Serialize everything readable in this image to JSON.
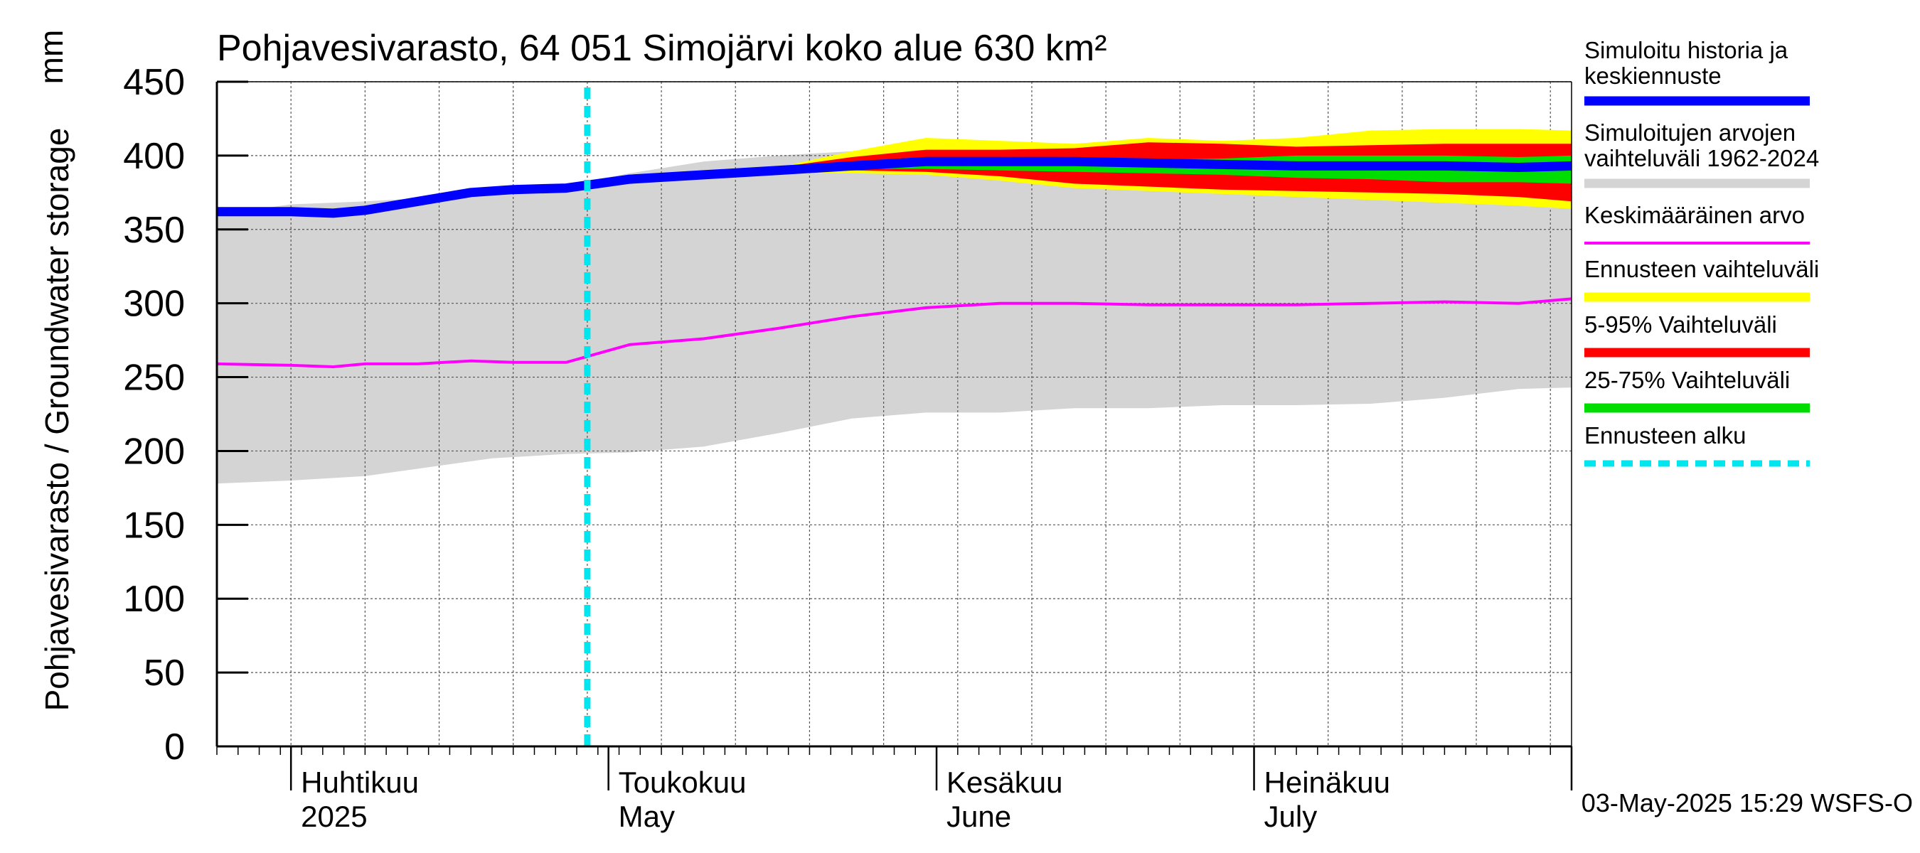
{
  "chart_data": {
    "type": "area",
    "title": "Pohjavesivarasto, 64 051 Simojärvi koko alue 630 km²",
    "ylabel": "Pohjavesivarasto / Groundwater storage",
    "yunit": "mm",
    "ylim": [
      0,
      450
    ],
    "yticks": [
      0,
      50,
      100,
      150,
      200,
      250,
      300,
      350,
      400,
      450
    ],
    "xlim": [
      "2025-03-25",
      "2025-07-31"
    ],
    "grid": true,
    "legend_position": "right",
    "month_labels": [
      {
        "fi": "Huhtikuu",
        "en": "2025",
        "date": "2025-04-01"
      },
      {
        "fi": "Toukokuu",
        "en": "May",
        "date": "2025-05-01"
      },
      {
        "fi": "Kesäkuu",
        "en": "June",
        "date": "2025-06-01"
      },
      {
        "fi": "Heinäkuu",
        "en": "July",
        "date": "2025-07-01"
      }
    ],
    "forecast_start": "2025-04-29",
    "range_1962_2024": {
      "x": [
        "2025-03-25",
        "2025-04-01",
        "2025-04-08",
        "2025-04-13",
        "2025-04-20",
        "2025-04-27",
        "2025-05-03",
        "2025-05-10",
        "2025-05-17",
        "2025-05-24",
        "2025-05-31",
        "2025-06-07",
        "2025-06-14",
        "2025-06-21",
        "2025-06-28",
        "2025-07-05",
        "2025-07-12",
        "2025-07-19",
        "2025-07-26",
        "2025-07-31"
      ],
      "upper": [
        360,
        367,
        369,
        371,
        376,
        380,
        388,
        396,
        400,
        403,
        405,
        407,
        405,
        404,
        403,
        402,
        403,
        405,
        406,
        407
      ],
      "lower": [
        178,
        180,
        183,
        188,
        195,
        198,
        199,
        203,
        212,
        222,
        226,
        226,
        229,
        229,
        231,
        231,
        232,
        236,
        242,
        243
      ]
    },
    "series": [
      {
        "name": "Simuloitu historia ja keskiennuste",
        "color": "#0000ff",
        "x": [
          "2025-03-25",
          "2025-04-01",
          "2025-04-05",
          "2025-04-08",
          "2025-04-13",
          "2025-04-18",
          "2025-04-22",
          "2025-04-27",
          "2025-05-03",
          "2025-05-10",
          "2025-05-17",
          "2025-05-24",
          "2025-05-31",
          "2025-06-07",
          "2025-06-14",
          "2025-06-21",
          "2025-06-28",
          "2025-07-05",
          "2025-07-12",
          "2025-07-19",
          "2025-07-26",
          "2025-07-31"
        ],
        "values": [
          362,
          362,
          361,
          363,
          369,
          375,
          377,
          378,
          384,
          387,
          390,
          393,
          396,
          396,
          396,
          395,
          394,
          393,
          393,
          393,
          392,
          393
        ]
      },
      {
        "name": "Keskimääräinen arvo",
        "color": "#ff00ff",
        "x": [
          "2025-03-25",
          "2025-04-01",
          "2025-04-05",
          "2025-04-08",
          "2025-04-13",
          "2025-04-18",
          "2025-04-22",
          "2025-04-27",
          "2025-05-03",
          "2025-05-10",
          "2025-05-17",
          "2025-05-24",
          "2025-05-31",
          "2025-06-07",
          "2025-06-14",
          "2025-06-21",
          "2025-06-28",
          "2025-07-05",
          "2025-07-12",
          "2025-07-19",
          "2025-07-26",
          "2025-07-31"
        ],
        "values": [
          259,
          258,
          257,
          259,
          259,
          261,
          260,
          260,
          272,
          276,
          283,
          291,
          297,
          300,
          300,
          299,
          299,
          299,
          300,
          301,
          300,
          303
        ]
      }
    ],
    "bands": [
      {
        "name": "Ennusteen vaihteluväli",
        "color": "#ffff00",
        "x": [
          "2025-05-17",
          "2025-05-24",
          "2025-05-31",
          "2025-06-07",
          "2025-06-14",
          "2025-06-21",
          "2025-06-28",
          "2025-07-05",
          "2025-07-12",
          "2025-07-19",
          "2025-07-26",
          "2025-07-31"
        ],
        "upper": [
          392,
          403,
          412,
          410,
          408,
          412,
          410,
          412,
          417,
          418,
          418,
          417
        ],
        "lower": [
          388,
          388,
          387,
          383,
          378,
          376,
          374,
          372,
          370,
          368,
          366,
          364
        ]
      },
      {
        "name": "5-95% Vaihteluväli",
        "color": "#ff0000",
        "x": [
          "2025-05-17",
          "2025-05-24",
          "2025-05-31",
          "2025-06-07",
          "2025-06-14",
          "2025-06-21",
          "2025-06-28",
          "2025-07-05",
          "2025-07-12",
          "2025-07-19",
          "2025-07-26",
          "2025-07-31"
        ],
        "upper": [
          392,
          399,
          404,
          404,
          405,
          409,
          408,
          406,
          407,
          408,
          408,
          408
        ],
        "lower": [
          389,
          390,
          389,
          386,
          381,
          379,
          377,
          376,
          375,
          374,
          372,
          369
        ]
      },
      {
        "name": "25-75% Vaihteluväli",
        "color": "#00dd00",
        "x": [
          "2025-05-24",
          "2025-05-31",
          "2025-06-07",
          "2025-06-14",
          "2025-06-21",
          "2025-06-28",
          "2025-07-05",
          "2025-07-12",
          "2025-07-19",
          "2025-07-26",
          "2025-07-31"
        ],
        "upper": [
          395,
          398,
          398,
          397,
          397,
          398,
          400,
          400,
          400,
          399,
          400
        ],
        "lower": [
          391,
          391,
          390,
          389,
          388,
          387,
          385,
          384,
          382,
          382,
          381
        ]
      }
    ],
    "legend": [
      {
        "label": "Simuloitu historia ja keskiennuste",
        "color": "#0000ff",
        "style": "line"
      },
      {
        "label": "Simuloitujen arvojen vaihteluväli 1962-2024",
        "color": "#d4d4d4",
        "style": "line"
      },
      {
        "label": "Keskimääräinen arvo",
        "color": "#ff00ff",
        "style": "thin"
      },
      {
        "label": "Ennusteen vaihteluväli",
        "color": "#ffff00",
        "style": "line"
      },
      {
        "label": "5-95% Vaihteluväli",
        "color": "#ff0000",
        "style": "line"
      },
      {
        "label": "25-75% Vaihteluväli",
        "color": "#00dd00",
        "style": "line"
      },
      {
        "label": "Ennusteen alku",
        "color": "#00e5ee",
        "style": "dash"
      }
    ],
    "footer": "03-May-2025 15:29 WSFS-O"
  }
}
